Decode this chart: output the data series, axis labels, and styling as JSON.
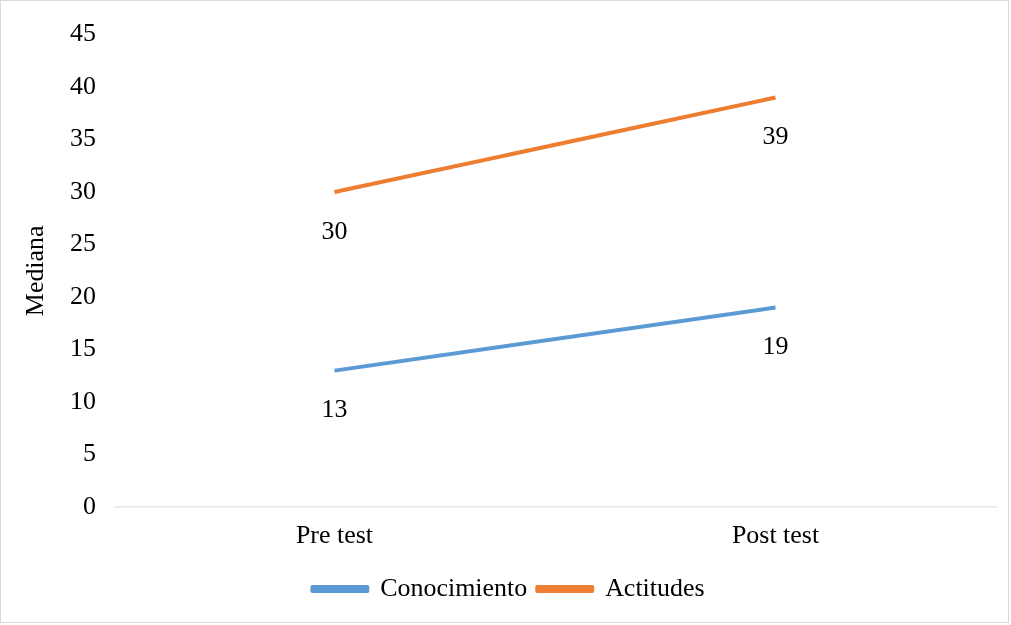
{
  "chart_data": {
    "type": "line",
    "ylabel": "Mediana",
    "categories": [
      "Pre test",
      "Post test"
    ],
    "series": [
      {
        "name": "Conocimiento",
        "color": "#5b9bd5",
        "values": [
          13,
          19
        ]
      },
      {
        "name": "Actitudes",
        "color": "#ed7d31",
        "values": [
          30,
          39
        ]
      }
    ],
    "ylim": [
      0,
      45
    ],
    "yticks": [
      0,
      5,
      10,
      15,
      20,
      25,
      30,
      35,
      40,
      45
    ],
    "grid": false,
    "legend": "bottom",
    "marker": "none",
    "line_style": "solid",
    "data_labels": true
  }
}
